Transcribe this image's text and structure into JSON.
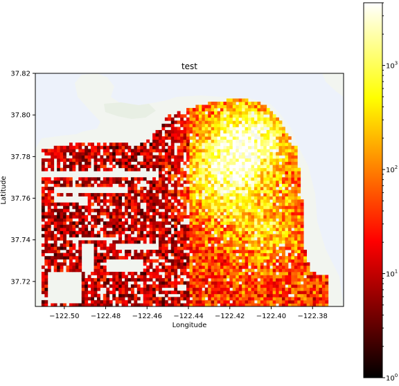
{
  "chart_data": {
    "type": "heatmap",
    "title": "test",
    "xlabel": "Longitude",
    "ylabel": "Latitude",
    "xlim": [
      -122.514,
      -122.365
    ],
    "ylim": [
      37.708,
      37.82
    ],
    "xticks": [
      -122.5,
      -122.48,
      -122.46,
      -122.44,
      -122.42,
      -122.4,
      -122.38
    ],
    "xtick_labels": [
      "−122.50",
      "−122.48",
      "−122.46",
      "−122.44",
      "−122.42",
      "−122.40",
      "−122.38"
    ],
    "yticks": [
      37.72,
      37.74,
      37.76,
      37.78,
      37.8,
      37.82
    ],
    "ytick_labels": [
      "37.72",
      "37.74",
      "37.76",
      "37.78",
      "37.80",
      "37.82"
    ],
    "colorbar": {
      "scale": "log",
      "colormap": "hot",
      "range": [
        1,
        4000
      ],
      "ticks": [
        1,
        10,
        100,
        1000
      ],
      "tick_bases": [
        "10",
        "10",
        "10",
        "10"
      ],
      "tick_exponents": [
        "0",
        "1",
        "2",
        "3"
      ]
    },
    "background": "basemap",
    "grid_resolution": [
      100,
      74
    ],
    "hotspots": [
      {
        "lon": -122.412,
        "lat": 37.787,
        "weight": 1.0
      },
      {
        "lon": -122.425,
        "lat": 37.766,
        "weight": 0.55
      },
      {
        "lon": -122.402,
        "lat": 37.745,
        "weight": 0.4
      }
    ]
  }
}
